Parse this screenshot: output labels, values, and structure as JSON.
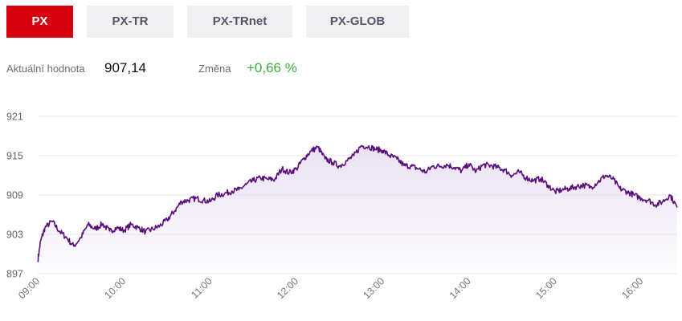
{
  "tabs": [
    {
      "label": "PX",
      "active": true
    },
    {
      "label": "PX-TR",
      "active": false
    },
    {
      "label": "PX-TRnet",
      "active": false
    },
    {
      "label": "PX-GLOB",
      "active": false
    }
  ],
  "stats": {
    "current_label": "Aktuální hodnota",
    "current_value": "907,14",
    "change_label": "Změna",
    "change_value": "+0,66 %"
  },
  "colors": {
    "accent": "#d6000f",
    "line": "#5a0f78",
    "fill": "#e6dcf1",
    "positive": "#3cad3c"
  },
  "chart_data": {
    "type": "area",
    "title": "",
    "xlabel": "",
    "ylabel": "",
    "ylim": [
      897,
      921
    ],
    "yticks": [
      921,
      915,
      909,
      903,
      897
    ],
    "xticks": [
      "09:00",
      "10:00",
      "11:00",
      "12:00",
      "13:00",
      "14:00",
      "15:00",
      "16:00"
    ],
    "xlim": [
      "09:00",
      "16:25"
    ],
    "grid": true,
    "series": [
      {
        "x": [
          "09:00",
          "09:02",
          "09:05",
          "09:10",
          "09:15",
          "09:20",
          "09:25",
          "09:30",
          "09:35",
          "09:40",
          "09:45",
          "09:50",
          "09:55",
          "10:00",
          "10:05",
          "10:10",
          "10:15",
          "10:20",
          "10:25",
          "10:30",
          "10:35",
          "10:40",
          "10:45",
          "10:50",
          "10:55",
          "11:00",
          "11:05",
          "11:10",
          "11:15",
          "11:20",
          "11:25",
          "11:30",
          "11:35",
          "11:40",
          "11:45",
          "11:50",
          "11:55",
          "12:00",
          "12:05",
          "12:10",
          "12:15",
          "12:20",
          "12:25",
          "12:30",
          "12:35",
          "12:40",
          "12:45",
          "12:50",
          "12:55",
          "13:00",
          "13:05",
          "13:10",
          "13:15",
          "13:20",
          "13:25",
          "13:30",
          "13:35",
          "13:40",
          "13:45",
          "13:50",
          "13:55",
          "14:00",
          "14:05",
          "14:10",
          "14:15",
          "14:20",
          "14:25",
          "14:30",
          "14:35",
          "14:40",
          "14:45",
          "14:50",
          "14:55",
          "15:00",
          "15:05",
          "15:10",
          "15:15",
          "15:20",
          "15:25",
          "15:30",
          "15:35",
          "15:40",
          "15:45",
          "15:50",
          "15:55",
          "16:00",
          "16:05",
          "16:10",
          "16:15",
          "16:20",
          "16:25"
        ],
        "values": [
          899.0,
          902.0,
          904.0,
          905.0,
          903.5,
          902.5,
          901.2,
          902.5,
          904.5,
          903.8,
          904.6,
          903.5,
          904.0,
          903.6,
          904.5,
          904.0,
          903.4,
          903.8,
          904.3,
          905.2,
          906.5,
          908.0,
          908.2,
          908.5,
          908.2,
          908.0,
          909.0,
          909.2,
          909.6,
          909.8,
          910.6,
          911.2,
          911.6,
          911.4,
          911.4,
          913.0,
          912.4,
          913.0,
          914.5,
          915.7,
          916.3,
          914.5,
          914.0,
          913.4,
          914.2,
          915.0,
          916.5,
          916.4,
          916.0,
          915.8,
          915.0,
          914.5,
          913.5,
          913.4,
          913.0,
          912.5,
          913.4,
          913.4,
          913.6,
          913.2,
          912.7,
          913.7,
          912.6,
          913.6,
          913.5,
          913.2,
          912.8,
          912.0,
          912.5,
          911.6,
          911.2,
          911.5,
          910.5,
          909.5,
          909.8,
          910.0,
          910.3,
          910.5,
          910.2,
          911.0,
          912.0,
          911.5,
          910.0,
          909.5,
          909.0,
          908.5,
          908.2,
          907.5,
          908.0,
          909.0,
          907.1
        ]
      }
    ]
  }
}
